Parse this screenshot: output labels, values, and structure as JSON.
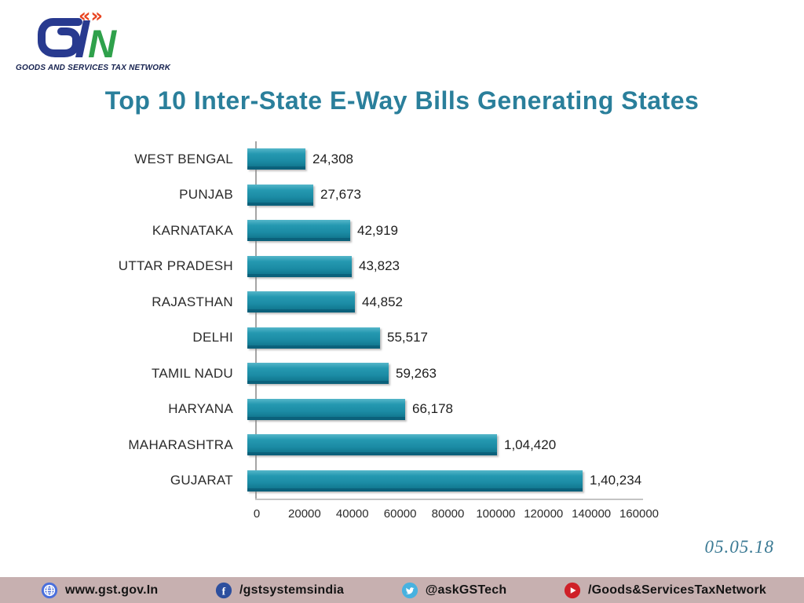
{
  "logo": {
    "letters_blue": "GS",
    "letter_green": "N",
    "chevrons": "«»",
    "tagline": "GOODS AND SERVICES TAX NETWORK"
  },
  "title": "Top 10 Inter-State E-Way Bills Generating States",
  "date": "05.05.18",
  "chart_data": {
    "type": "bar",
    "orientation": "horizontal",
    "title": "Top 10 Inter-State E-Way Bills Generating States",
    "categories": [
      "WEST BENGAL",
      "PUNJAB",
      "KARNATAKA",
      "UTTAR PRADESH",
      "RAJASTHAN",
      "DELHI",
      "TAMIL NADU",
      "HARYANA",
      "MAHARASHTRA",
      "GUJARAT"
    ],
    "values": [
      24308,
      27673,
      42919,
      43823,
      44852,
      55517,
      59263,
      66178,
      104420,
      140234
    ],
    "value_labels": [
      "24,308",
      "27,673",
      "42,919",
      "43,823",
      "44,852",
      "55,517",
      "59,263",
      "66,178",
      "1,04,420",
      "1,40,234"
    ],
    "xlabel": "",
    "ylabel": "",
    "xlim": [
      0,
      160000
    ],
    "x_ticks": [
      0,
      20000,
      40000,
      60000,
      80000,
      100000,
      120000,
      140000,
      160000
    ],
    "x_tick_labels": [
      "0",
      "20000",
      "40000",
      "60000",
      "80000",
      "100000",
      "120000",
      "140000",
      "160000"
    ],
    "grid": false,
    "legend": false,
    "bar_color": "#1e95ad"
  },
  "colors": {
    "title": "#2a7f9b",
    "bar": "#1e95ad",
    "bar_dark_edge": "#0b617b",
    "axis_line": "#a5a5a5",
    "date": "#3b7a94",
    "footer_bg": "#c7b0b0",
    "logo_blue": "#283a8f",
    "logo_green": "#2fa14b",
    "logo_orange": "#e8431f"
  },
  "footer": {
    "items": [
      {
        "icon": "globe-icon",
        "label": "www.gst.gov.In",
        "icon_color": "#4a6fdc"
      },
      {
        "icon": "facebook-icon",
        "label": "/gstsystemsindia",
        "icon_color": "#2d4f9e"
      },
      {
        "icon": "twitter-icon",
        "label": "@askGSTech",
        "icon_color": "#47b2e0"
      },
      {
        "icon": "youtube-icon",
        "label": "/Goods&ServicesTaxNetwork",
        "icon_color": "#cf2028"
      }
    ]
  }
}
